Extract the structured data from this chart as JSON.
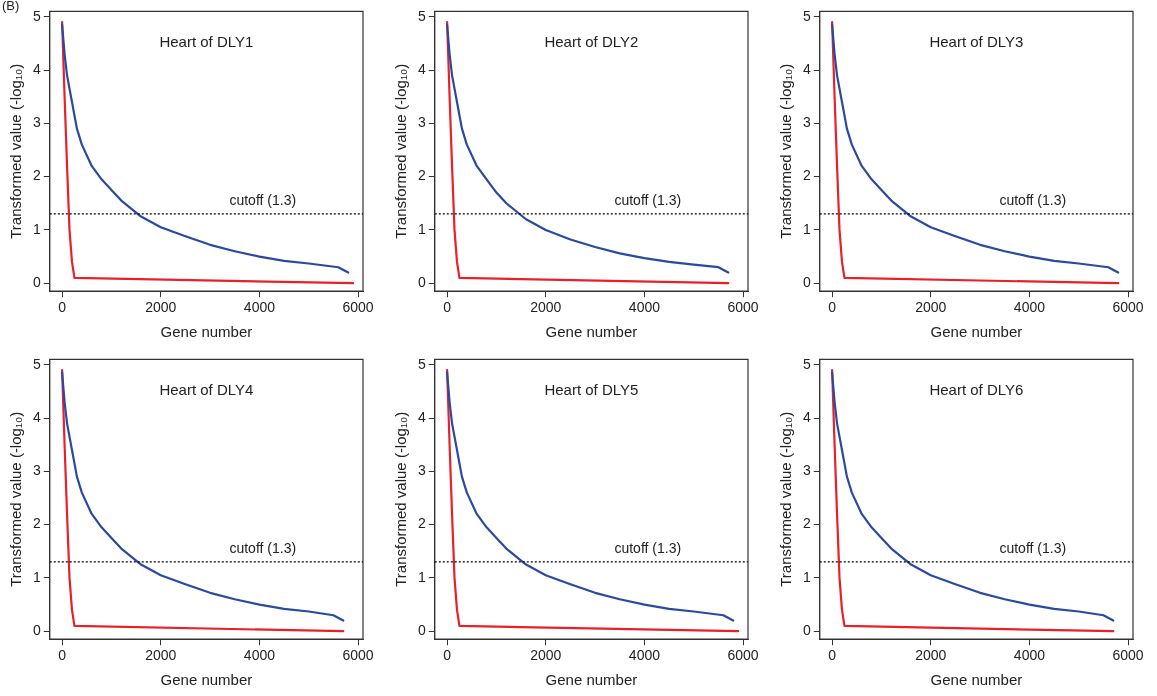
{
  "chart_data": [
    {
      "type": "line",
      "title": "Heart of DLY1",
      "xlabel": "Gene number",
      "ylabel": "Transformed value (-log₁₀)",
      "xlim": [
        -250,
        6100
      ],
      "ylim": [
        -0.15,
        5.1
      ],
      "xticks": [
        0,
        2000,
        4000,
        6000
      ],
      "yticks": [
        0,
        1,
        2,
        3,
        4,
        5
      ],
      "grid": false,
      "legend": false,
      "marker": "none",
      "annotations": [
        "(B)"
      ],
      "ref_lines": [
        {
          "axis": "y",
          "value": 1.3,
          "label": "cutoff (1.3)",
          "line_style": "dotted",
          "color": "#000000"
        }
      ],
      "series": [
        {
          "color": "#2a4aa0",
          "x": [
            0,
            50,
            100,
            200,
            300,
            400,
            600,
            800,
            1000,
            1200,
            1400,
            1600,
            2000,
            2500,
            3000,
            3500,
            4000,
            4500,
            5000,
            5600,
            5800
          ],
          "values": [
            4.85,
            4.3,
            3.9,
            3.4,
            2.9,
            2.6,
            2.2,
            1.95,
            1.75,
            1.55,
            1.4,
            1.25,
            1.05,
            0.88,
            0.72,
            0.6,
            0.5,
            0.42,
            0.37,
            0.3,
            0.2
          ]
        },
        {
          "color": "#e8202a",
          "x": [
            0,
            50,
            100,
            150,
            200,
            250,
            5900
          ],
          "values": [
            4.9,
            3.5,
            2.2,
            1.0,
            0.4,
            0.1,
            0
          ]
        }
      ]
    },
    {
      "type": "line",
      "title": "Heart of DLY2",
      "xlabel": "Gene number",
      "ylabel": "Transformed value (-log₁₀)",
      "xlim": [
        -250,
        6100
      ],
      "ylim": [
        -0.15,
        5.1
      ],
      "xticks": [
        0,
        2000,
        4000,
        6000
      ],
      "yticks": [
        0,
        1,
        2,
        3,
        4,
        5
      ],
      "grid": false,
      "legend": false,
      "marker": "none",
      "ref_lines": [
        {
          "axis": "y",
          "value": 1.3,
          "label": "cutoff (1.3)",
          "line_style": "dotted",
          "color": "#000000"
        }
      ],
      "series": [
        {
          "color": "#2a4aa0",
          "x": [
            0,
            50,
            100,
            200,
            300,
            400,
            600,
            800,
            1000,
            1200,
            1400,
            1600,
            2000,
            2500,
            3000,
            3500,
            4000,
            4500,
            5000,
            5500,
            5700
          ],
          "values": [
            4.85,
            4.3,
            3.9,
            3.4,
            2.9,
            2.6,
            2.2,
            1.95,
            1.7,
            1.5,
            1.35,
            1.2,
            1.0,
            0.82,
            0.68,
            0.56,
            0.47,
            0.4,
            0.35,
            0.3,
            0.2
          ]
        },
        {
          "color": "#e8202a",
          "x": [
            0,
            50,
            100,
            150,
            200,
            250,
            5700
          ],
          "values": [
            4.9,
            3.5,
            2.2,
            1.0,
            0.4,
            0.1,
            0
          ]
        }
      ]
    },
    {
      "type": "line",
      "title": "Heart of DLY3",
      "xlabel": "Gene number",
      "ylabel": "Transformed value (-log₁₀)",
      "xlim": [
        -250,
        6100
      ],
      "ylim": [
        -0.15,
        5.1
      ],
      "xticks": [
        0,
        2000,
        4000,
        6000
      ],
      "yticks": [
        0,
        1,
        2,
        3,
        4,
        5
      ],
      "grid": false,
      "legend": false,
      "marker": "none",
      "ref_lines": [
        {
          "axis": "y",
          "value": 1.3,
          "label": "cutoff (1.3)",
          "line_style": "dotted",
          "color": "#000000"
        }
      ],
      "series": [
        {
          "color": "#2a4aa0",
          "x": [
            0,
            50,
            100,
            200,
            300,
            400,
            600,
            800,
            1000,
            1200,
            1400,
            1600,
            2000,
            2500,
            3000,
            3500,
            4000,
            4500,
            5000,
            5600,
            5800
          ],
          "values": [
            4.85,
            4.3,
            3.9,
            3.4,
            2.9,
            2.6,
            2.2,
            1.95,
            1.75,
            1.55,
            1.4,
            1.25,
            1.05,
            0.88,
            0.72,
            0.6,
            0.5,
            0.42,
            0.37,
            0.3,
            0.2
          ]
        },
        {
          "color": "#e8202a",
          "x": [
            0,
            50,
            100,
            150,
            200,
            250,
            5800
          ],
          "values": [
            4.9,
            3.5,
            2.2,
            1.0,
            0.4,
            0.1,
            0
          ]
        }
      ]
    },
    {
      "type": "line",
      "title": "Heart of DLY4",
      "xlabel": "Gene number",
      "ylabel": "Transformed value (-log₁₀)",
      "xlim": [
        -250,
        6100
      ],
      "ylim": [
        -0.15,
        5.1
      ],
      "xticks": [
        0,
        2000,
        4000,
        6000
      ],
      "yticks": [
        0,
        1,
        2,
        3,
        4,
        5
      ],
      "grid": false,
      "legend": false,
      "marker": "none",
      "ref_lines": [
        {
          "axis": "y",
          "value": 1.3,
          "label": "cutoff (1.3)",
          "line_style": "dotted",
          "color": "#000000"
        }
      ],
      "series": [
        {
          "color": "#2a4aa0",
          "x": [
            0,
            50,
            100,
            200,
            300,
            400,
            600,
            800,
            1000,
            1200,
            1400,
            1600,
            2000,
            2500,
            3000,
            3500,
            4000,
            4500,
            5000,
            5500,
            5700
          ],
          "values": [
            4.85,
            4.3,
            3.9,
            3.4,
            2.9,
            2.6,
            2.2,
            1.95,
            1.75,
            1.55,
            1.4,
            1.25,
            1.05,
            0.88,
            0.72,
            0.6,
            0.5,
            0.42,
            0.37,
            0.3,
            0.2
          ]
        },
        {
          "color": "#e8202a",
          "x": [
            0,
            50,
            100,
            150,
            200,
            250,
            5700
          ],
          "values": [
            4.9,
            3.5,
            2.2,
            1.0,
            0.4,
            0.1,
            0
          ]
        }
      ]
    },
    {
      "type": "line",
      "title": "Heart of DLY5",
      "xlabel": "Gene number",
      "ylabel": "Transformed value (-log₁₀)",
      "xlim": [
        -250,
        6100
      ],
      "ylim": [
        -0.15,
        5.1
      ],
      "xticks": [
        0,
        2000,
        4000,
        6000
      ],
      "yticks": [
        0,
        1,
        2,
        3,
        4,
        5
      ],
      "grid": false,
      "legend": false,
      "marker": "none",
      "ref_lines": [
        {
          "axis": "y",
          "value": 1.3,
          "label": "cutoff (1.3)",
          "line_style": "dotted",
          "color": "#000000"
        }
      ],
      "series": [
        {
          "color": "#2a4aa0",
          "x": [
            0,
            50,
            100,
            200,
            300,
            400,
            600,
            800,
            1000,
            1200,
            1400,
            1600,
            2000,
            2500,
            3000,
            3500,
            4000,
            4500,
            5000,
            5600,
            5800
          ],
          "values": [
            4.85,
            4.3,
            3.9,
            3.4,
            2.9,
            2.6,
            2.2,
            1.95,
            1.75,
            1.55,
            1.4,
            1.25,
            1.05,
            0.88,
            0.72,
            0.6,
            0.5,
            0.42,
            0.37,
            0.3,
            0.2
          ]
        },
        {
          "color": "#e8202a",
          "x": [
            0,
            50,
            100,
            150,
            200,
            250,
            5900
          ],
          "values": [
            4.9,
            3.5,
            2.2,
            1.0,
            0.4,
            0.1,
            0
          ]
        }
      ]
    },
    {
      "type": "line",
      "title": "Heart of DLY6",
      "xlabel": "Gene number",
      "ylabel": "Transformed value (-log₁₀)",
      "xlim": [
        -250,
        6100
      ],
      "ylim": [
        -0.15,
        5.1
      ],
      "xticks": [
        0,
        2000,
        4000,
        6000
      ],
      "yticks": [
        0,
        1,
        2,
        3,
        4,
        5
      ],
      "grid": false,
      "legend": false,
      "marker": "none",
      "ref_lines": [
        {
          "axis": "y",
          "value": 1.3,
          "label": "cutoff (1.3)",
          "line_style": "dotted",
          "color": "#000000"
        }
      ],
      "series": [
        {
          "color": "#2a4aa0",
          "x": [
            0,
            50,
            100,
            200,
            300,
            400,
            600,
            800,
            1000,
            1200,
            1400,
            1600,
            2000,
            2500,
            3000,
            3500,
            4000,
            4500,
            5000,
            5500,
            5700
          ],
          "values": [
            4.85,
            4.3,
            3.9,
            3.4,
            2.9,
            2.6,
            2.2,
            1.95,
            1.75,
            1.55,
            1.4,
            1.25,
            1.05,
            0.88,
            0.72,
            0.6,
            0.5,
            0.42,
            0.37,
            0.3,
            0.2
          ]
        },
        {
          "color": "#e8202a",
          "x": [
            0,
            50,
            100,
            150,
            200,
            250,
            5700
          ],
          "values": [
            4.9,
            3.5,
            2.2,
            1.0,
            0.4,
            0.1,
            0
          ]
        }
      ]
    }
  ]
}
